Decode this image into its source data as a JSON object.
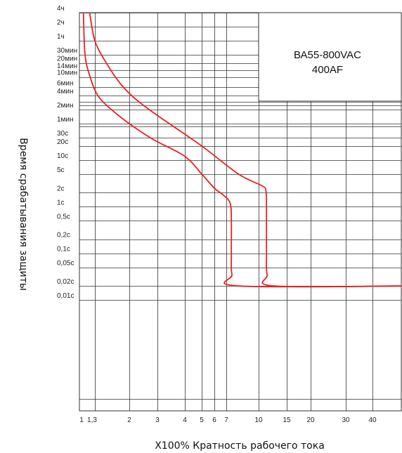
{
  "chart_data": {
    "type": "line",
    "title": "",
    "model_label": "ВА55-800VAC",
    "frame_label": "400AF",
    "xlabel": "X100% Кратность рабочего тока",
    "ylabel": "Время срабатывания защиты",
    "x_scale": "log",
    "y_scale": "log",
    "x_ticks": [
      {
        "value": 1,
        "label": "1"
      },
      {
        "value": 1.3,
        "label": "1,3"
      },
      {
        "value": 2,
        "label": "2"
      },
      {
        "value": 3,
        "label": "3"
      },
      {
        "value": 4,
        "label": "4"
      },
      {
        "value": 5,
        "label": "5"
      },
      {
        "value": 6,
        "label": "6"
      },
      {
        "value": 7,
        "label": "7"
      },
      {
        "value": 10,
        "label": "10"
      },
      {
        "value": 15,
        "label": "15"
      },
      {
        "value": 20,
        "label": "20"
      },
      {
        "value": 30,
        "label": "30"
      },
      {
        "value": 40,
        "label": "40"
      }
    ],
    "y_ticks": [
      {
        "value": 14400,
        "label": "4ч"
      },
      {
        "value": 7200,
        "label": "2ч"
      },
      {
        "value": 3600,
        "label": "1ч"
      },
      {
        "value": 1800,
        "label": "30мин"
      },
      {
        "value": 1200,
        "label": "20мин"
      },
      {
        "value": 840,
        "label": "14мин"
      },
      {
        "value": 600,
        "label": "10мин"
      },
      {
        "value": 360,
        "label": "6мин"
      },
      {
        "value": 240,
        "label": "4мин"
      },
      {
        "value": 120,
        "label": "2мин"
      },
      {
        "value": 60,
        "label": "1мин"
      },
      {
        "value": 30,
        "label": "30с"
      },
      {
        "value": 20,
        "label": "20с"
      },
      {
        "value": 10,
        "label": "10с"
      },
      {
        "value": 5,
        "label": "5с"
      },
      {
        "value": 2,
        "label": "2с"
      },
      {
        "value": 1,
        "label": "1с"
      },
      {
        "value": 0.5,
        "label": "0,5с"
      },
      {
        "value": 0.2,
        "label": "0,2с"
      },
      {
        "value": 0.1,
        "label": "0,1с"
      },
      {
        "value": 0.05,
        "label": "0,05с"
      },
      {
        "value": 0.02,
        "label": "0,02с"
      },
      {
        "value": 0.01,
        "label": "0,01с"
      }
    ],
    "series": [
      {
        "color": "#e52222",
        "points": [
          [
            1.07,
            14400
          ],
          [
            1.1,
            1800
          ],
          [
            1.2,
            600
          ],
          [
            1.35,
            240
          ],
          [
            1.6,
            120
          ],
          [
            2,
            60
          ],
          [
            2.8,
            28
          ],
          [
            4,
            12
          ],
          [
            5,
            5
          ],
          [
            6,
            2.5
          ],
          [
            6.7,
            1.8
          ],
          [
            7.3,
            1.2
          ],
          [
            7.4,
            0.5
          ],
          [
            7.4,
            0.1
          ],
          [
            7.45,
            0.035
          ],
          [
            8,
            0.02
          ],
          [
            70,
            0.02
          ]
        ]
      },
      {
        "color": "#e52222",
        "points": [
          [
            1.19,
            14400
          ],
          [
            1.3,
            3600
          ],
          [
            1.5,
            1200
          ],
          [
            1.8,
            420
          ],
          [
            2.2,
            200
          ],
          [
            3,
            90
          ],
          [
            5,
            20
          ],
          [
            8,
            5
          ],
          [
            10.5,
            2.8
          ],
          [
            11.1,
            2.2
          ],
          [
            11.2,
            1
          ],
          [
            11.2,
            0.1
          ],
          [
            11.3,
            0.035
          ],
          [
            12.5,
            0.02
          ],
          [
            70,
            0.02
          ]
        ]
      }
    ],
    "grid": true,
    "legend": "none"
  }
}
